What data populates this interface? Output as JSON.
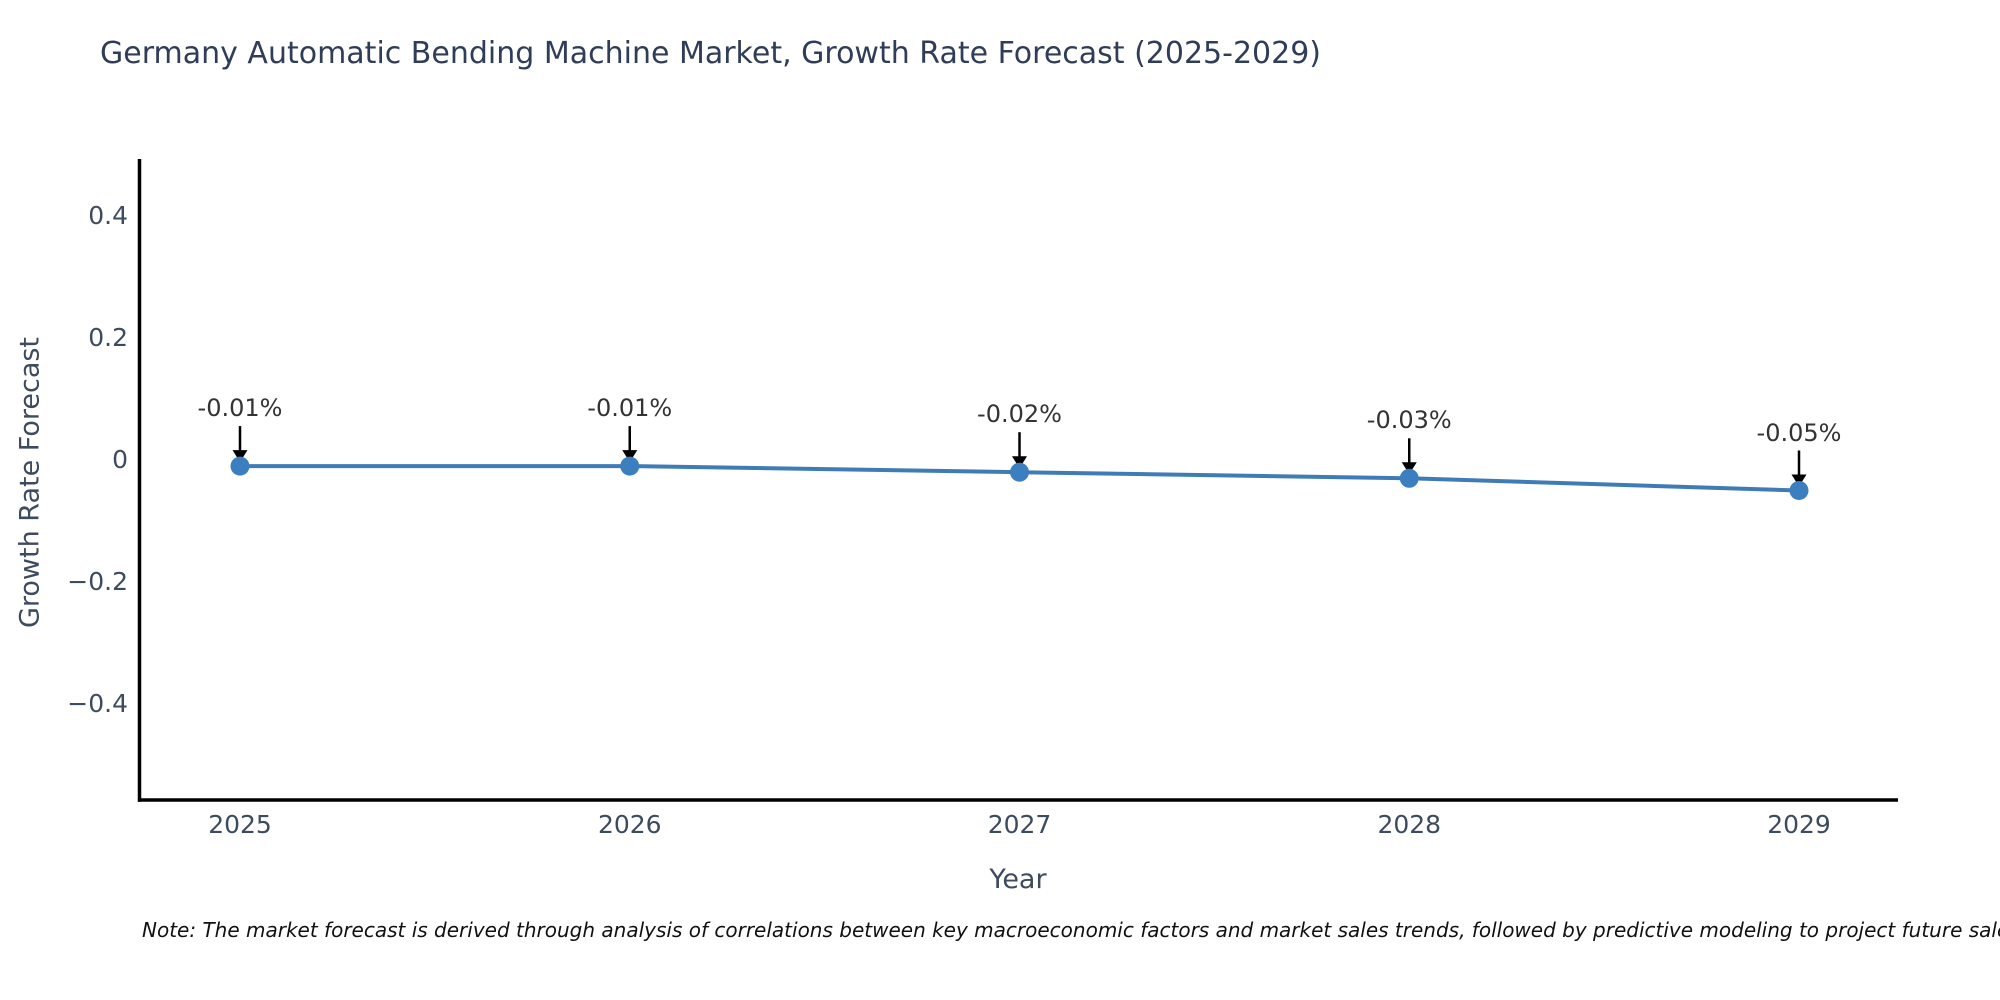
{
  "note": "Note: The market forecast is derived through analysis of correlations between key macroeconomic factors and market sales trends, followed by predictive modeling to project future sales.",
  "chart_data": {
    "type": "line",
    "title": "Germany Automatic Bending Machine Market, Growth Rate Forecast (2025-2029)",
    "xlabel": "Year",
    "ylabel": "Growth Rate Forecast",
    "x": [
      2025,
      2026,
      2027,
      2028,
      2029
    ],
    "y": [
      -0.01,
      -0.01,
      -0.02,
      -0.03,
      -0.05
    ],
    "annotations": [
      "-0.01%",
      "-0.01%",
      "-0.02%",
      "-0.03%",
      "-0.05%"
    ],
    "xtick_labels": [
      "2025",
      "2026",
      "2027",
      "2028",
      "2029"
    ],
    "ytick_labels": [
      "0.4",
      "0.2",
      "0",
      "−0.2",
      "−0.4"
    ],
    "ytick_values": [
      0.4,
      0.2,
      0,
      -0.2,
      -0.4
    ],
    "ylim": [
      -0.557,
      0.493
    ],
    "grid": false,
    "legend": "none",
    "line_color": "#3f7cb6",
    "marker_color": "#3b7fc0",
    "arrow_color": "#000000",
    "axis_color": "#000000",
    "title_color": "#2f3d58",
    "label_color": "#3d4b5f",
    "annotation_color": "#333333"
  }
}
